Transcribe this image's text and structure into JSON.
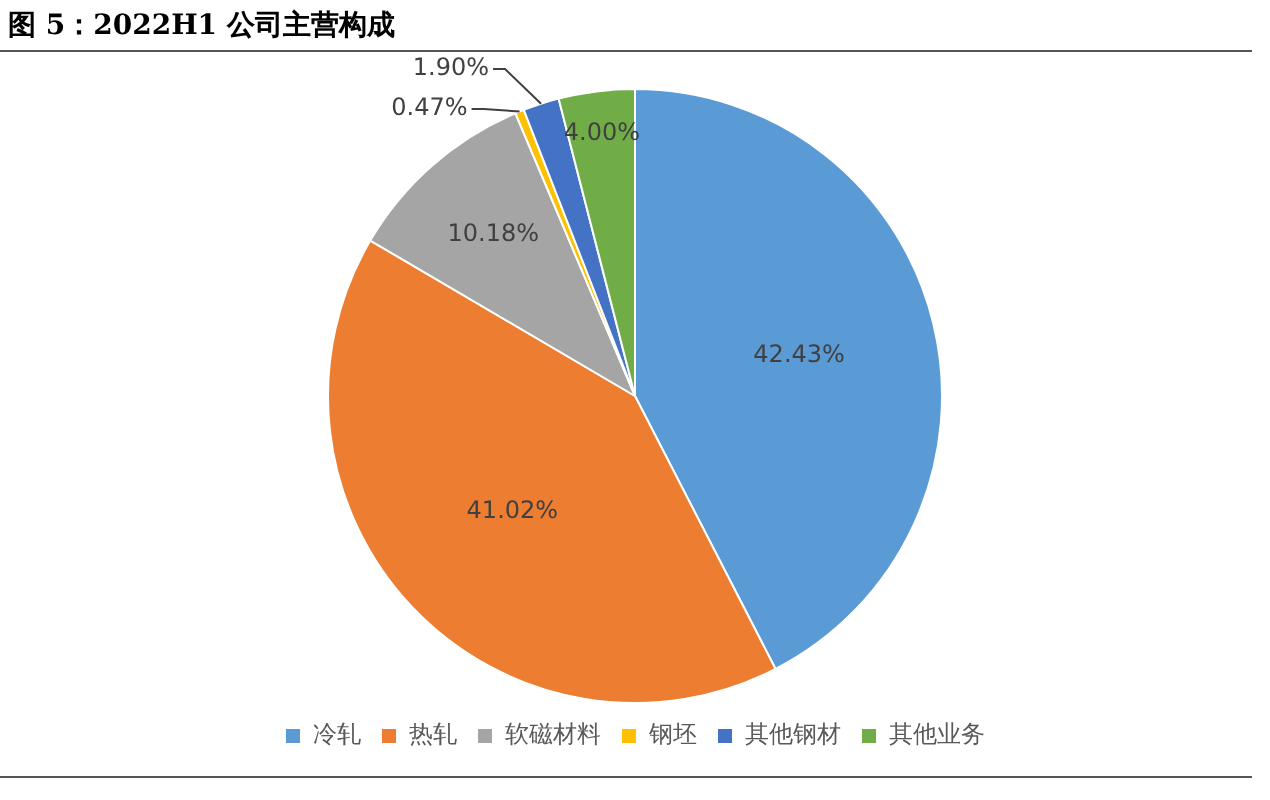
{
  "chart_data": {
    "type": "pie",
    "title": "图 5：2022H1 公司主营构成",
    "categories": [
      "冷轧",
      "热轧",
      "软磁材料",
      "钢坯",
      "其他钢材",
      "其他业务"
    ],
    "values": [
      42.43,
      41.02,
      10.18,
      0.47,
      1.9,
      4.0
    ],
    "colors": [
      "#5b9bd5",
      "#ed7d31",
      "#a5a5a5",
      "#ffc000",
      "#4472c4",
      "#70ad47"
    ],
    "value_labels": [
      "42.43%",
      "41.02%",
      "10.18%",
      "0.47%",
      "1.90%",
      "4.00%"
    ],
    "legend": "bottom"
  }
}
